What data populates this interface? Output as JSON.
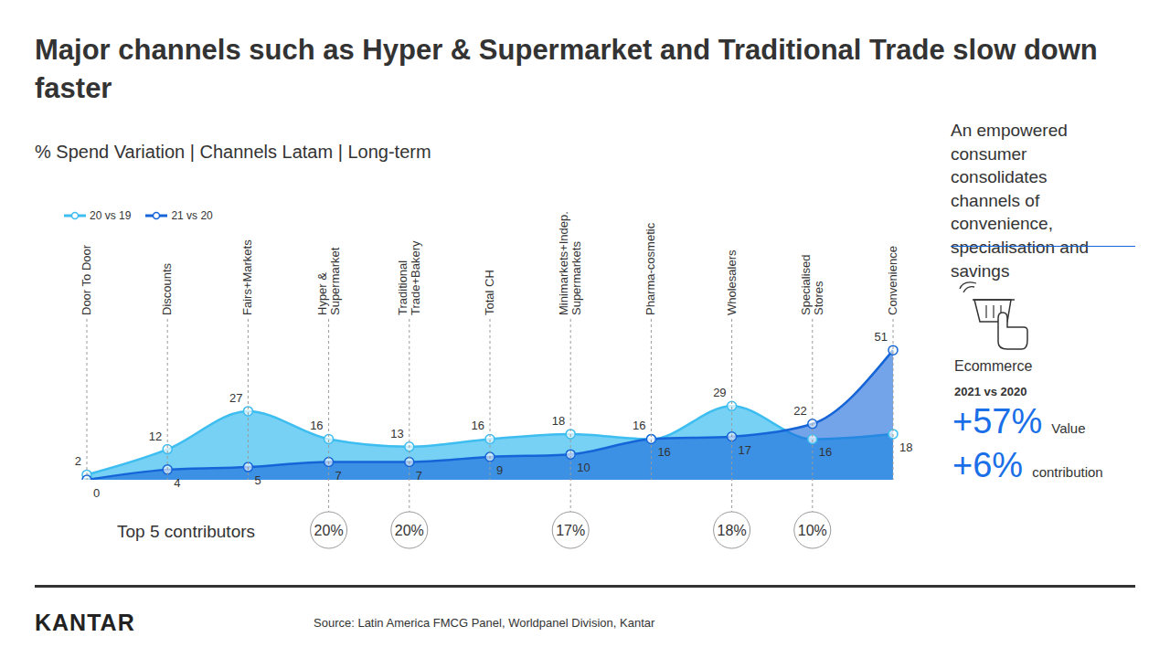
{
  "chart_data": {
    "type": "area",
    "title": "Major channels such as Hyper & Supermarket and Traditional Trade slow down faster",
    "subtitle": "% Spend Variation | Channels Latam | Long-term",
    "categories": [
      "Door To Door",
      "Discounts",
      "Fairs+Markets",
      "Hyper & Supermarket",
      "Traditional Trade+Bakery",
      "Total CH",
      "Minimarkets+Indep. Supermarkets",
      "Pharma-cosmetic",
      "Wholesalers",
      "Specialised Stores",
      "Convenience"
    ],
    "series": [
      {
        "name": "20 vs 19",
        "color": "#3dbdf0",
        "marker": "circle",
        "values": [
          2,
          12,
          27,
          16,
          13,
          16,
          18,
          16,
          29,
          16,
          18
        ]
      },
      {
        "name": "21 vs 20",
        "color": "#1565d8",
        "marker": "circle",
        "values": [
          0,
          4,
          5,
          7,
          7,
          9,
          10,
          16,
          17,
          22,
          51
        ]
      }
    ],
    "ylim": [
      0,
      55
    ],
    "tick_labels": "x",
    "data_labels": true,
    "legend": "top-left",
    "top_contributors": {
      "label": "Top 5 contributors",
      "values": [
        null,
        null,
        null,
        20,
        20,
        null,
        17,
        null,
        18,
        10,
        null
      ],
      "value_labels": [
        null,
        null,
        null,
        "20%",
        "20%",
        null,
        "17%",
        null,
        "18%",
        "10%",
        null
      ]
    },
    "side_note": "An empowered consumer consolidates channels of convenience, specialisation and savings",
    "ecommerce": {
      "label": "Ecommerce",
      "period": "2021 vs 2020",
      "value": "+57%",
      "value_label": "Value",
      "contribution": "+6%",
      "contribution_label": "contribution"
    },
    "source": "Source: Latin America FMCG Panel, Worldpanel Division, Kantar",
    "brand": "KANTAR"
  }
}
